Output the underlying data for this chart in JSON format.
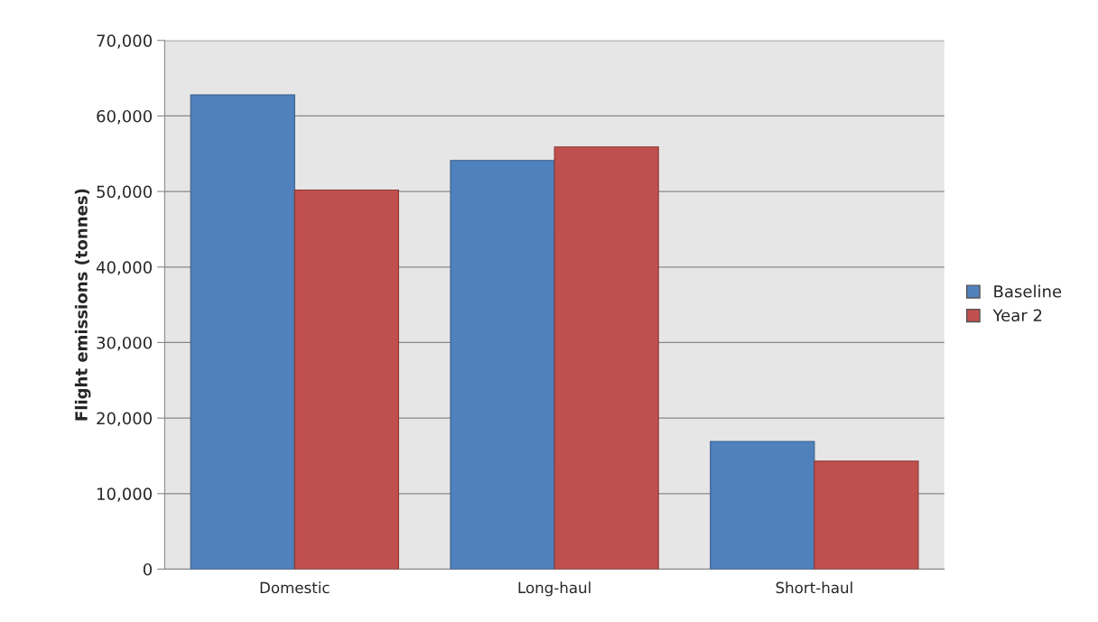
{
  "chart_data": {
    "type": "bar",
    "ylabel": "Flight emissions (tonnes)",
    "categories": [
      "Domestic",
      "Long-haul",
      "Short-haul"
    ],
    "series": [
      {
        "name": "Baseline",
        "color": "#4f81bd",
        "values": [
          62800,
          54100,
          16900
        ]
      },
      {
        "name": "Year 2",
        "color": "#c0504d",
        "values": [
          50200,
          55900,
          14300
        ]
      }
    ],
    "ylim": [
      0,
      70000
    ],
    "yticks": [
      {
        "value": 0,
        "label": "0"
      },
      {
        "value": 10000,
        "label": "10,000"
      },
      {
        "value": 20000,
        "label": "20,000"
      },
      {
        "value": 30000,
        "label": "30,000"
      },
      {
        "value": 40000,
        "label": "40,000"
      },
      {
        "value": 50000,
        "label": "50,000"
      },
      {
        "value": 60000,
        "label": "60,000"
      },
      {
        "value": 70000,
        "label": "70,000"
      }
    ],
    "grid": "y",
    "legend": "right"
  }
}
